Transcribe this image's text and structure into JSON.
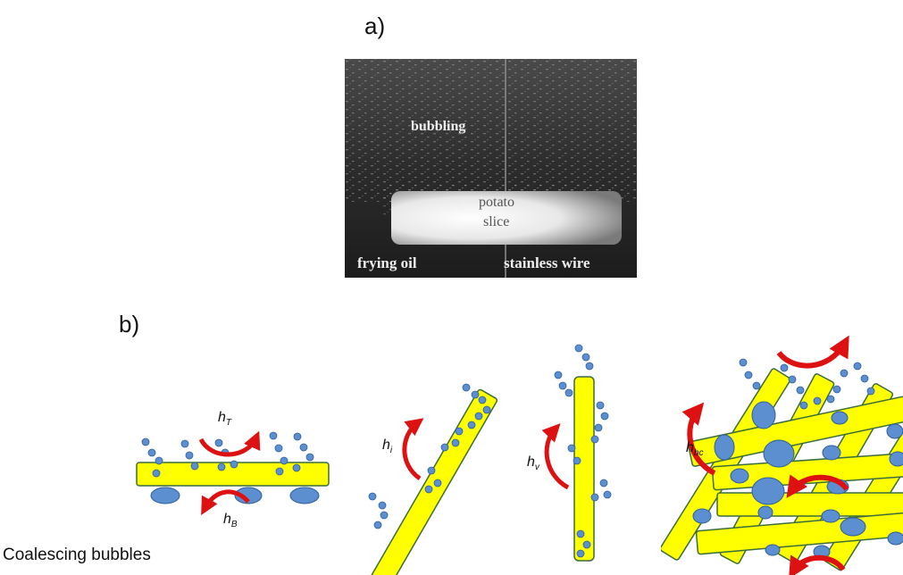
{
  "panel_a": {
    "label": "a)",
    "photo_labels": {
      "bubbling": "bubbling",
      "potato": "potato",
      "slice": "slice",
      "frying_oil": "frying oil",
      "stainless_wire": "stainless wire"
    }
  },
  "panel_b": {
    "label": "b)",
    "h_top": {
      "main": "h",
      "sub": "T"
    },
    "h_bottom": {
      "main": "h",
      "sub": "B"
    },
    "h_inclined": {
      "main": "h",
      "sub": "i"
    },
    "h_vertical": {
      "main": "h",
      "sub": "v"
    },
    "h_bundle": {
      "main": "h",
      "sub": "bc"
    },
    "caption": "Coalescing bubbles"
  },
  "colors": {
    "strip_fill": "#ffff00",
    "strip_stroke": "#3b6d3b",
    "bubble_fill": "#5b8fd0",
    "bubble_stroke": "#2f5f9c",
    "arrow": "#dd1111"
  }
}
